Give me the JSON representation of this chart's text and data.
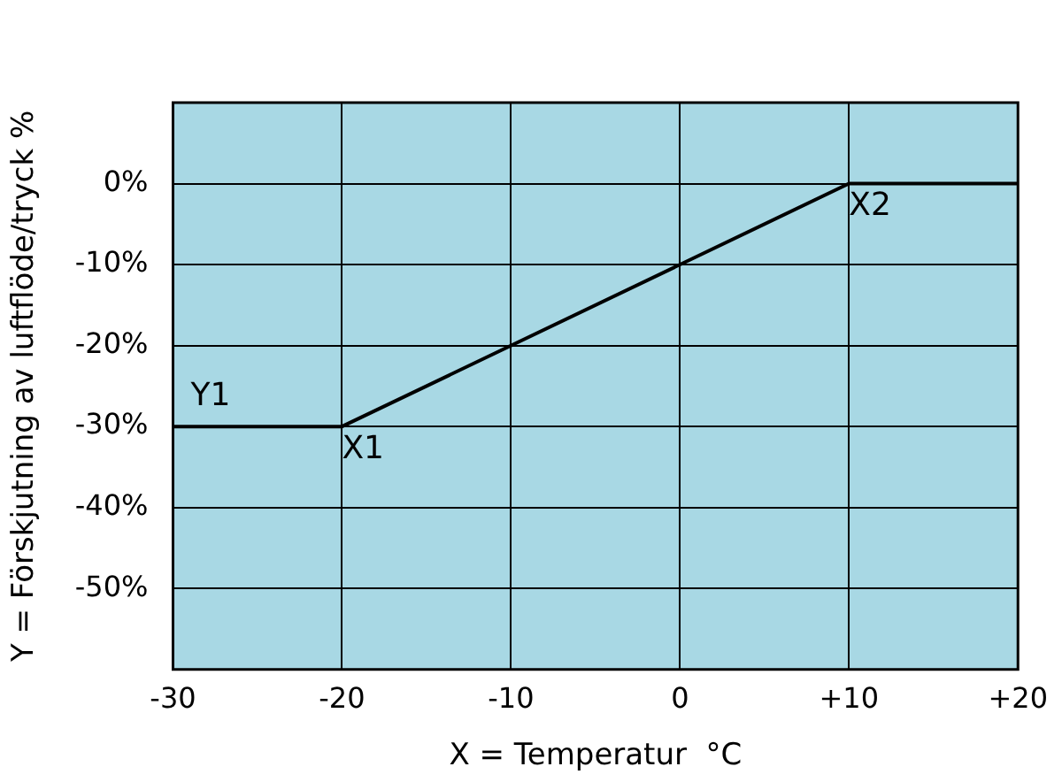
{
  "chart_data": {
    "type": "line",
    "xlabel": "X = Temperatur  °C",
    "ylabel": "Y = Förskjutning av luftflöde/tryck %",
    "x": [
      -30,
      -20,
      10,
      20
    ],
    "series": [
      {
        "color": "#000000",
        "values": [
          -30,
          -30,
          0,
          0
        ]
      }
    ],
    "xlim": [
      -30,
      20
    ],
    "xticks": [
      -30,
      -20,
      -10,
      0,
      {
        "value": 10,
        "label": "+10"
      },
      {
        "value": 20,
        "label": "+20"
      }
    ],
    "ylim": [
      -60,
      10
    ],
    "yticks": [
      {
        "value": -60,
        "label": null
      },
      {
        "value": -50,
        "label": "-50%"
      },
      {
        "value": -40,
        "label": "-40%"
      },
      {
        "value": -30,
        "label": "-30%"
      },
      {
        "value": -20,
        "label": "-20%"
      },
      {
        "value": -10,
        "label": "-10%"
      },
      {
        "value": 0,
        "label": "0%"
      },
      {
        "value": 10,
        "label": null
      }
    ],
    "grid": true,
    "legend": false,
    "marker": "none",
    "line_style": "solid",
    "annotations": [
      {
        "text": "Y1",
        "x": -30,
        "y": -30
      },
      {
        "text": "X1",
        "x": -20,
        "y": -30
      },
      {
        "text": "X2",
        "x": 10,
        "y": 0
      }
    ]
  }
}
